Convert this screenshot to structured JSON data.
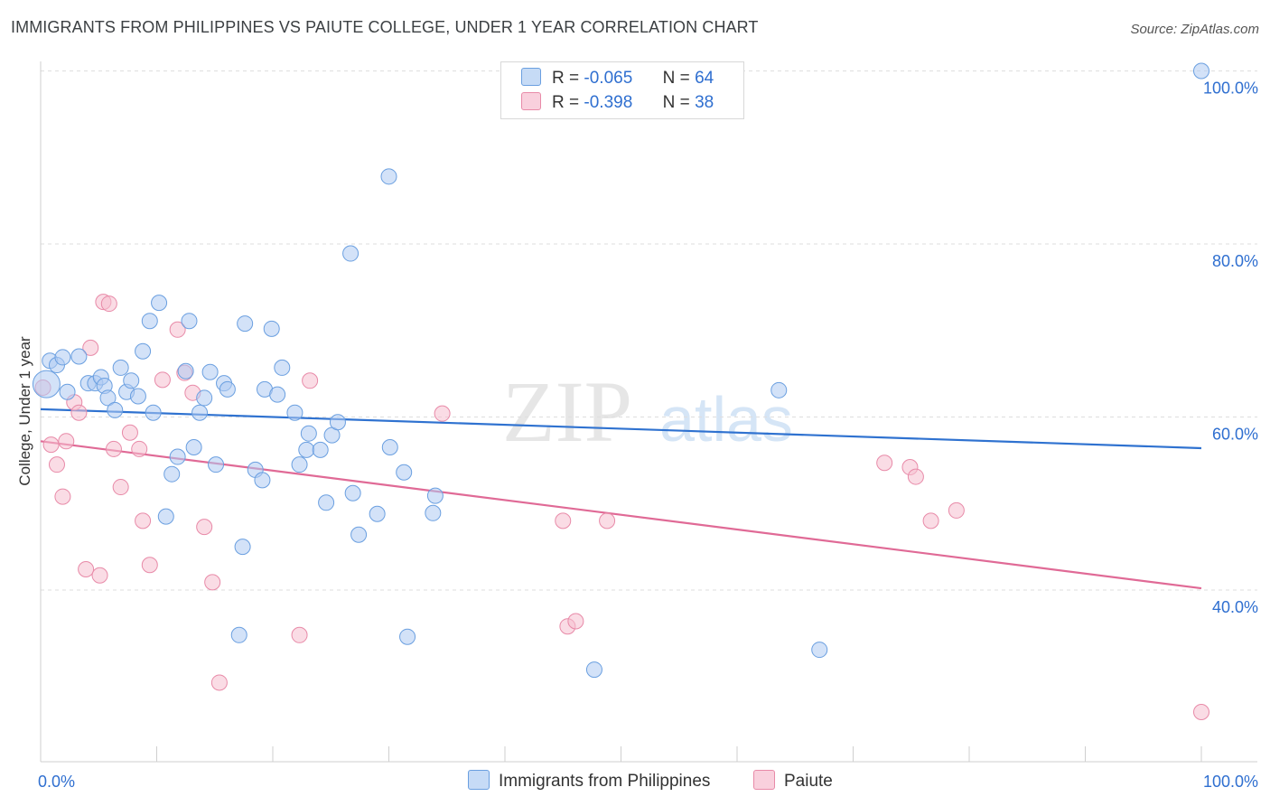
{
  "title": "IMMIGRANTS FROM PHILIPPINES VS PAIUTE COLLEGE, UNDER 1 YEAR CORRELATION CHART",
  "source": "Source: ZipAtlas.com",
  "watermark": {
    "zip": "ZIP",
    "atlas": "atlas"
  },
  "legend": {
    "r_label": "R =",
    "n_label": "N =",
    "series": [
      {
        "r": "-0.065",
        "n": "64"
      },
      {
        "r": "-0.398",
        "n": "38"
      }
    ]
  },
  "colors": {
    "blue_fill": "#aecbf2",
    "blue_stroke": "#6a9fe0",
    "blue_line": "#2f72d0",
    "pink_fill": "#f6bfd0",
    "pink_stroke": "#e88aa8",
    "pink_line": "#e06a96",
    "tick_text": "#2f6fd0",
    "grid": "#dedede"
  },
  "chart_data": {
    "type": "scatter",
    "title": "IMMIGRANTS FROM PHILIPPINES VS PAIUTE COLLEGE, UNDER 1 YEAR CORRELATION CHART",
    "xlabel": "",
    "ylabel": "College, Under 1 year",
    "xlim": [
      0,
      100
    ],
    "ylim": [
      20,
      102
    ],
    "x_tick_labels": [
      "0.0%",
      "100.0%"
    ],
    "y_ticks": [
      40,
      60,
      80,
      100
    ],
    "y_tick_labels": [
      "40.0%",
      "60.0%",
      "80.0%",
      "100.0%"
    ],
    "series": [
      {
        "name": "Immigrants from Philippines",
        "r": -0.065,
        "n": 64,
        "trend": {
          "x": [
            0,
            100
          ],
          "y": [
            60.9,
            56.4
          ]
        },
        "points": [
          {
            "x": 0.5,
            "y": 63.8,
            "big": 1
          },
          {
            "x": 0.8,
            "y": 66.5
          },
          {
            "x": 1.4,
            "y": 66.0
          },
          {
            "x": 1.9,
            "y": 66.9
          },
          {
            "x": 2.3,
            "y": 62.9
          },
          {
            "x": 3.3,
            "y": 67.0
          },
          {
            "x": 4.1,
            "y": 63.9
          },
          {
            "x": 4.7,
            "y": 63.9
          },
          {
            "x": 5.2,
            "y": 64.6
          },
          {
            "x": 5.5,
            "y": 63.6
          },
          {
            "x": 5.8,
            "y": 62.2
          },
          {
            "x": 6.4,
            "y": 60.8
          },
          {
            "x": 6.9,
            "y": 65.7
          },
          {
            "x": 7.4,
            "y": 62.9
          },
          {
            "x": 7.8,
            "y": 64.2
          },
          {
            "x": 8.4,
            "y": 62.4
          },
          {
            "x": 8.8,
            "y": 67.6
          },
          {
            "x": 9.4,
            "y": 71.1
          },
          {
            "x": 9.7,
            "y": 60.5
          },
          {
            "x": 10.2,
            "y": 73.2
          },
          {
            "x": 10.8,
            "y": 48.5
          },
          {
            "x": 11.3,
            "y": 53.4
          },
          {
            "x": 11.8,
            "y": 55.4
          },
          {
            "x": 12.5,
            "y": 65.3
          },
          {
            "x": 12.8,
            "y": 71.1
          },
          {
            "x": 13.2,
            "y": 56.5
          },
          {
            "x": 13.7,
            "y": 60.5
          },
          {
            "x": 14.1,
            "y": 62.2
          },
          {
            "x": 14.6,
            "y": 65.2
          },
          {
            "x": 15.1,
            "y": 54.5
          },
          {
            "x": 15.8,
            "y": 63.9
          },
          {
            "x": 16.1,
            "y": 63.2
          },
          {
            "x": 17.1,
            "y": 34.8
          },
          {
            "x": 17.4,
            "y": 45.0
          },
          {
            "x": 17.6,
            "y": 70.8
          },
          {
            "x": 18.5,
            "y": 53.9
          },
          {
            "x": 19.1,
            "y": 52.7
          },
          {
            "x": 19.3,
            "y": 63.2
          },
          {
            "x": 19.9,
            "y": 70.2
          },
          {
            "x": 20.4,
            "y": 62.6
          },
          {
            "x": 20.8,
            "y": 65.7
          },
          {
            "x": 21.9,
            "y": 60.5
          },
          {
            "x": 22.3,
            "y": 54.5
          },
          {
            "x": 22.9,
            "y": 56.2
          },
          {
            "x": 23.1,
            "y": 58.1
          },
          {
            "x": 24.1,
            "y": 56.2
          },
          {
            "x": 24.6,
            "y": 50.1
          },
          {
            "x": 25.1,
            "y": 57.9
          },
          {
            "x": 25.6,
            "y": 59.4
          },
          {
            "x": 26.9,
            "y": 51.2
          },
          {
            "x": 27.4,
            "y": 46.4
          },
          {
            "x": 26.7,
            "y": 78.9
          },
          {
            "x": 29.0,
            "y": 48.8
          },
          {
            "x": 30.1,
            "y": 56.5
          },
          {
            "x": 30.0,
            "y": 87.8
          },
          {
            "x": 31.3,
            "y": 53.6
          },
          {
            "x": 31.6,
            "y": 34.6
          },
          {
            "x": 33.8,
            "y": 48.9
          },
          {
            "x": 34.0,
            "y": 50.9
          },
          {
            "x": 47.7,
            "y": 30.8
          },
          {
            "x": 63.6,
            "y": 63.1
          },
          {
            "x": 67.1,
            "y": 33.1
          },
          {
            "x": 100,
            "y": 100
          }
        ]
      },
      {
        "name": "Paiute",
        "r": -0.398,
        "n": 38,
        "trend": {
          "x": [
            0,
            100
          ],
          "y": [
            57.2,
            40.2
          ]
        },
        "points": [
          {
            "x": 0.2,
            "y": 63.4
          },
          {
            "x": 0.9,
            "y": 56.8
          },
          {
            "x": 1.4,
            "y": 54.5
          },
          {
            "x": 1.9,
            "y": 50.8
          },
          {
            "x": 2.2,
            "y": 57.2
          },
          {
            "x": 2.9,
            "y": 61.7
          },
          {
            "x": 3.3,
            "y": 60.5
          },
          {
            "x": 3.9,
            "y": 42.4
          },
          {
            "x": 4.3,
            "y": 68.0
          },
          {
            "x": 5.1,
            "y": 41.7
          },
          {
            "x": 5.4,
            "y": 73.3
          },
          {
            "x": 5.9,
            "y": 73.1
          },
          {
            "x": 6.3,
            "y": 56.3
          },
          {
            "x": 6.9,
            "y": 51.9
          },
          {
            "x": 7.7,
            "y": 58.2
          },
          {
            "x": 8.5,
            "y": 56.3
          },
          {
            "x": 8.8,
            "y": 48.0
          },
          {
            "x": 9.4,
            "y": 42.9
          },
          {
            "x": 10.5,
            "y": 64.3
          },
          {
            "x": 11.8,
            "y": 70.1
          },
          {
            "x": 12.4,
            "y": 65.1
          },
          {
            "x": 13.1,
            "y": 62.8
          },
          {
            "x": 14.1,
            "y": 47.3
          },
          {
            "x": 14.8,
            "y": 40.9
          },
          {
            "x": 15.4,
            "y": 29.3
          },
          {
            "x": 22.3,
            "y": 34.8
          },
          {
            "x": 23.2,
            "y": 64.2
          },
          {
            "x": 34.6,
            "y": 60.4
          },
          {
            "x": 45.0,
            "y": 48.0
          },
          {
            "x": 45.4,
            "y": 35.8
          },
          {
            "x": 46.1,
            "y": 36.4
          },
          {
            "x": 48.8,
            "y": 48.0
          },
          {
            "x": 72.7,
            "y": 54.7
          },
          {
            "x": 74.9,
            "y": 54.2
          },
          {
            "x": 75.4,
            "y": 53.1
          },
          {
            "x": 76.7,
            "y": 48.0
          },
          {
            "x": 78.9,
            "y": 49.2
          },
          {
            "x": 100,
            "y": 25.9
          }
        ]
      }
    ]
  }
}
